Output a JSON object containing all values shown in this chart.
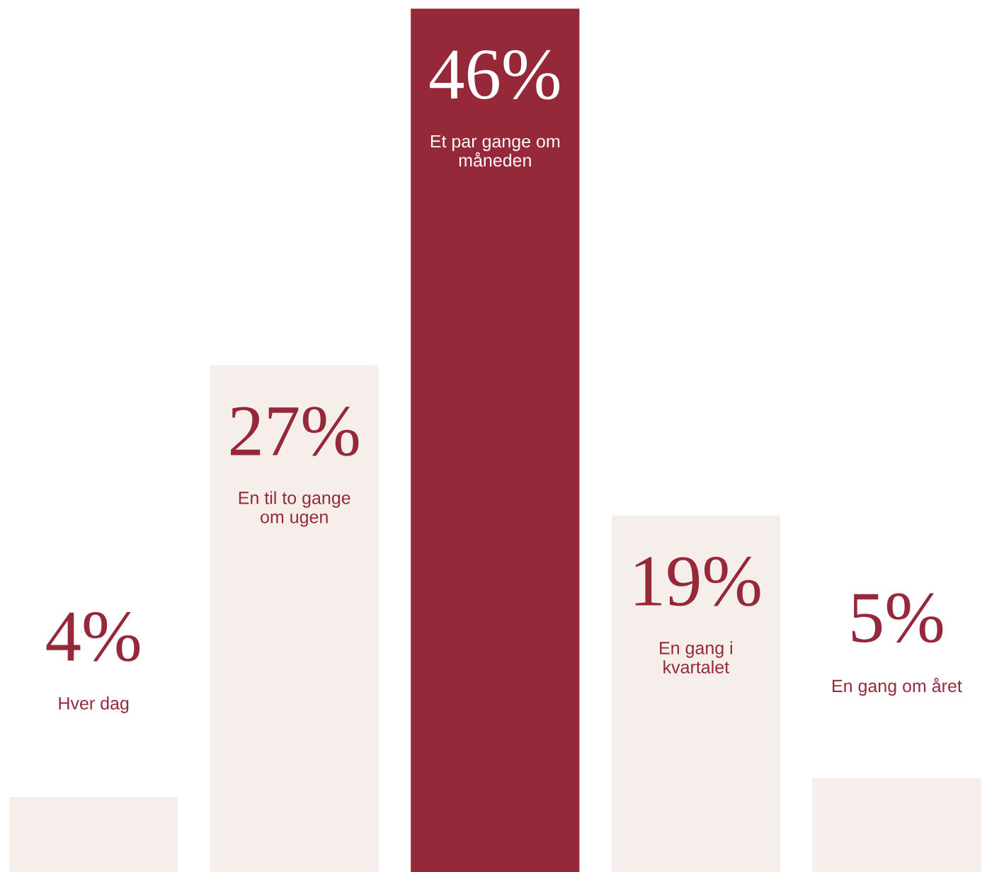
{
  "chart_data": {
    "type": "bar",
    "categories": [
      "Hver dag",
      "En til to gange om ugen",
      "Et par gange om måneden",
      "En gang i kvartalet",
      "En gang om året"
    ],
    "values": [
      4,
      27,
      46,
      19,
      5
    ],
    "value_labels": [
      "4%",
      "27%",
      "46%",
      "19%",
      "5%"
    ],
    "colors": [
      "#f5eeea",
      "#f5eeea",
      "#952839",
      "#f5eeea",
      "#f5eeea"
    ],
    "legend": false
  }
}
